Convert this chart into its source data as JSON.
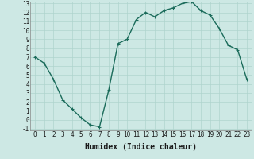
{
  "x": [
    0,
    1,
    2,
    3,
    4,
    5,
    6,
    7,
    8,
    9,
    10,
    11,
    12,
    13,
    14,
    15,
    16,
    17,
    18,
    19,
    20,
    21,
    22,
    23
  ],
  "y": [
    7,
    6.3,
    4.5,
    2.2,
    1.2,
    0.2,
    -0.6,
    -0.8,
    3.3,
    8.5,
    9.0,
    11.2,
    12.0,
    11.5,
    12.2,
    12.5,
    13.0,
    13.2,
    12.2,
    11.7,
    10.2,
    8.3,
    7.8,
    4.5
  ],
  "line_color": "#1a6b5a",
  "marker": "+",
  "marker_size": 3,
  "bg_color": "#cde8e4",
  "grid_color": "#afd4ce",
  "xlabel": "Humidex (Indice chaleur)",
  "ylim": [
    -1,
    13
  ],
  "xlim": [
    -0.5,
    23.5
  ],
  "yticks": [
    -1,
    0,
    1,
    2,
    3,
    4,
    5,
    6,
    7,
    8,
    9,
    10,
    11,
    12,
    13
  ],
  "xticks": [
    0,
    1,
    2,
    3,
    4,
    5,
    6,
    7,
    8,
    9,
    10,
    11,
    12,
    13,
    14,
    15,
    16,
    17,
    18,
    19,
    20,
    21,
    22,
    23
  ],
  "xlabel_fontsize": 7,
  "tick_fontsize": 5.5,
  "line_width": 1.0
}
